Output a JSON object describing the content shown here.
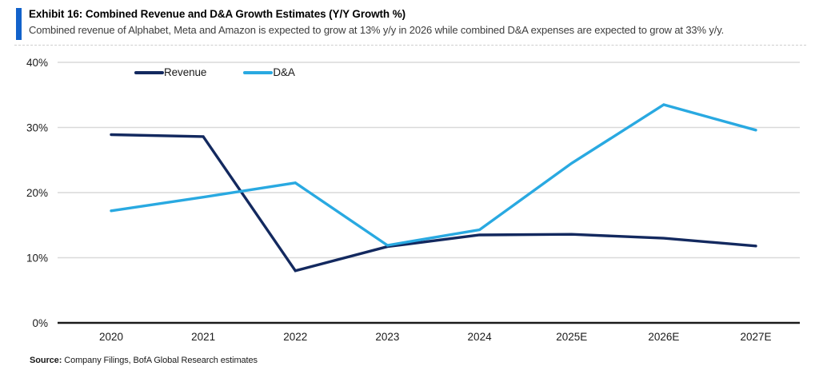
{
  "header": {
    "exhibit_title": "Exhibit 16: Combined Revenue and D&A Growth Estimates (Y/Y Growth %)",
    "subtitle": "Combined revenue of Alphabet, Meta and Amazon is expected to grow at 13% y/y in 2026 while combined D&A expenses are expected to grow at 33% y/y.",
    "accent_color": "#1262cb"
  },
  "chart_data": {
    "type": "line",
    "categories": [
      "2020",
      "2021",
      "2022",
      "2023",
      "2024",
      "2025E",
      "2026E",
      "2027E"
    ],
    "series": [
      {
        "name": "Revenue",
        "color": "#13295f",
        "values": [
          28.9,
          28.6,
          8.0,
          11.7,
          13.5,
          13.6,
          13.0,
          11.8
        ]
      },
      {
        "name": "D&A",
        "color": "#29a9e1",
        "values": [
          17.2,
          19.3,
          21.5,
          11.9,
          14.3,
          24.5,
          33.5,
          29.6
        ]
      }
    ],
    "title": "",
    "xlabel": "",
    "ylabel": "",
    "ylim": [
      0,
      40
    ],
    "ytick_step": 10,
    "ytick_labels": [
      "0%",
      "10%",
      "20%",
      "30%",
      "40%"
    ],
    "grid": "horizontal",
    "gridline_color": "#d9d9d9",
    "axis_color": "#1a1a1a",
    "legend_position": "top-left-inside"
  },
  "footer": {
    "source_label": "Source:",
    "source_text": " Company Filings, BofA Global Research estimates"
  }
}
